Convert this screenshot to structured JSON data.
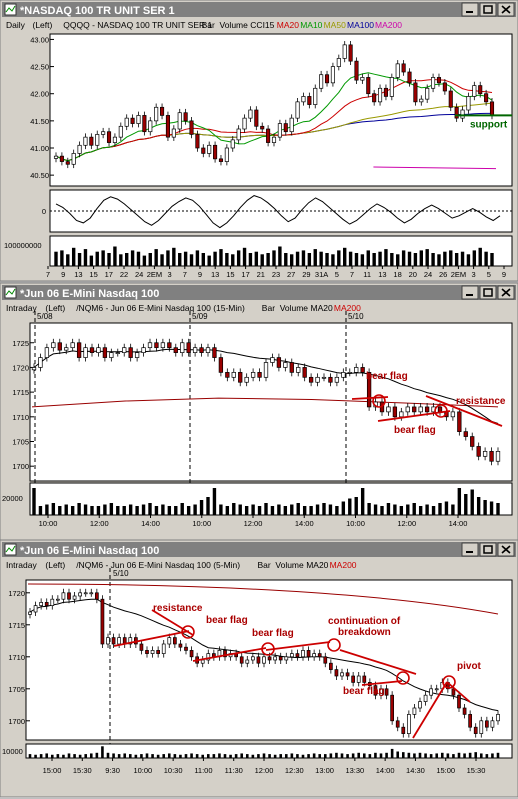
{
  "windows": [
    {
      "title": "*NASDAQ 100 TR UNIT SER 1",
      "info": {
        "interval": "Daily",
        "scale": "(Left)",
        "symbol": "QQQQ - NASDAQ 100 TR UNIT SER 1",
        "style": "Bar",
        "volume": "Volume",
        "indicator": "CCI15",
        "mas": [
          {
            "label": "MA20",
            "color": "#cc0000"
          },
          {
            "label": "MA10",
            "color": "#009900"
          },
          {
            "label": "MA50",
            "color": "#999900"
          },
          {
            "label": "MA100",
            "color": "#000099"
          },
          {
            "label": "MA200",
            "color": "#cc00aa"
          }
        ]
      }
    },
    {
      "title": "*Jun 06  E-Mini Nasdaq 100",
      "info": {
        "interval": "Intraday",
        "scale": "(Left)",
        "symbol": "/NQM6 - Jun 06  E-Mini Nasdaq 100 (15-Min)",
        "style": "Bar",
        "volume": "Volume",
        "mas": [
          {
            "label": "MA20",
            "color": "#000000"
          },
          {
            "label": "MA200",
            "color": "#cc0000"
          }
        ]
      }
    },
    {
      "title": "*Jun 06  E-Mini Nasdaq 100",
      "info": {
        "interval": "Intraday",
        "scale": "(Left)",
        "symbol": "/NQM6 - Jun 06  E-Mini Nasdaq 100 (5-Min)",
        "style": "Bar",
        "volume": "Volume",
        "mas": [
          {
            "label": "MA20",
            "color": "#000000"
          },
          {
            "label": "MA200",
            "color": "#cc0000"
          }
        ]
      }
    }
  ],
  "chart_data": [
    {
      "type": "candlestick",
      "ylim": [
        40.3,
        43.1
      ],
      "ytick_values": [
        40.5,
        41.0,
        41.5,
        42.0,
        42.5,
        43.0
      ],
      "ytick_labels": [
        "40.50",
        "41.00",
        "41.50",
        "42.00",
        "42.50",
        "43.00"
      ],
      "xtick_labels": [
        "7",
        "9",
        "13",
        "15",
        "17",
        "22",
        "24",
        "2EM",
        "3",
        "7",
        "9",
        "13",
        "15",
        "17",
        "21",
        "23",
        "27",
        "29",
        "31A",
        "5",
        "7",
        "11",
        "13",
        "18",
        "20",
        "24",
        "26",
        "2EM",
        "3",
        "5",
        "9"
      ],
      "close": [
        40.85,
        40.75,
        40.7,
        40.9,
        41.05,
        41.2,
        41.05,
        41.25,
        41.3,
        41.1,
        41.2,
        41.4,
        41.55,
        41.45,
        41.6,
        41.3,
        41.5,
        41.75,
        41.6,
        41.2,
        41.35,
        41.65,
        41.5,
        41.25,
        41.0,
        40.9,
        41.05,
        40.8,
        40.75,
        41.0,
        41.15,
        41.35,
        41.55,
        41.7,
        41.4,
        41.35,
        41.1,
        41.2,
        41.45,
        41.3,
        41.55,
        41.85,
        41.95,
        41.8,
        42.1,
        42.35,
        42.2,
        42.5,
        42.65,
        42.9,
        42.6,
        42.25,
        42.3,
        42.0,
        41.85,
        42.1,
        41.95,
        42.3,
        42.55,
        42.4,
        42.2,
        41.85,
        41.9,
        42.1,
        42.3,
        42.2,
        42.05,
        41.75,
        41.55,
        41.7,
        41.95,
        42.15,
        42.0,
        41.85,
        41.6
      ],
      "ma200_start": [
        0.7,
        41.2
      ],
      "ma200_end": [
        1.0,
        40.62
      ],
      "annotations": [
        {
          "text": "support",
          "color": "#006600",
          "y": 41.6
        }
      ],
      "cci": {
        "label": "0",
        "values": [
          60,
          30,
          -20,
          -80,
          -100,
          -60,
          20,
          90,
          120,
          100,
          60,
          10,
          -40,
          -90,
          -120,
          -80,
          -20,
          40,
          80,
          110,
          90,
          40,
          -30,
          -100,
          -140,
          -100,
          -40,
          30,
          90,
          130,
          110,
          70,
          20,
          -40,
          -90,
          -60,
          10,
          70,
          110,
          80,
          30,
          -20,
          -70,
          -110,
          -80,
          -30,
          20,
          60,
          30,
          -10,
          -60,
          -100,
          -70,
          -20,
          20,
          50,
          20,
          -20,
          -60,
          -40,
          -10,
          20,
          -10,
          -50,
          -80,
          -40
        ]
      },
      "volume": {
        "label": "100000000",
        "values": [
          0.55,
          0.6,
          0.45,
          0.7,
          0.5,
          0.65,
          0.4,
          0.55,
          0.6,
          0.5,
          0.75,
          0.45,
          0.5,
          0.6,
          0.55,
          0.4,
          0.5,
          0.65,
          0.45,
          0.6,
          0.7,
          0.5,
          0.55,
          0.45,
          0.6,
          0.5,
          0.4,
          0.55,
          0.65,
          0.5,
          0.45,
          0.6,
          0.7,
          0.5,
          0.55,
          0.45,
          0.5,
          0.6,
          0.75,
          0.5,
          0.45,
          0.55,
          0.6,
          0.5,
          0.65,
          0.55,
          0.5,
          0.45,
          0.6,
          0.7,
          0.55,
          0.5,
          0.45,
          0.6,
          0.5,
          0.55,
          0.65,
          0.5,
          0.45,
          0.6,
          0.55,
          0.5,
          0.6,
          0.65,
          0.5,
          0.45,
          0.55,
          0.6,
          0.5,
          0.55,
          0.45,
          0.6,
          0.7,
          0.55,
          0.5
        ]
      }
    },
    {
      "type": "candlestick",
      "ylim": [
        1697,
        1729
      ],
      "ytick_values": [
        1700,
        1705,
        1710,
        1715,
        1720,
        1725
      ],
      "ytick_labels": [
        "1700",
        "1705",
        "1710",
        "1715",
        "1720",
        "1725"
      ],
      "xtick_labels": [
        "10:00",
        "12:00",
        "14:00",
        "10:00",
        "12:00",
        "14:00",
        "10:00",
        "12:00",
        "14:00"
      ],
      "sessions": [
        "5/08",
        "5/09",
        "5/10"
      ],
      "close": [
        1720,
        1722,
        1724,
        1725,
        1723.5,
        1724,
        1725,
        1722,
        1724,
        1723,
        1724,
        1722,
        1723,
        1723,
        1724,
        1722,
        1723,
        1724,
        1725,
        1724,
        1725,
        1724,
        1723,
        1725,
        1723,
        1724,
        1723,
        1724,
        1722,
        1719,
        1718,
        1719,
        1717,
        1718,
        1719,
        1718,
        1721,
        1722,
        1720,
        1721,
        1719,
        1720,
        1718,
        1717,
        1718,
        1718,
        1717,
        1718,
        1719,
        1719,
        1720,
        1719,
        1712,
        1713,
        1711,
        1712,
        1710,
        1711,
        1712,
        1711,
        1712,
        1711,
        1712,
        1711,
        1710,
        1711,
        1707,
        1706,
        1704,
        1702,
        1703,
        1701,
        1703
      ],
      "ma200": [
        1712,
        1713.2,
        1713.8,
        1713.5,
        1712.8,
        1712
      ],
      "annotations": [
        {
          "text": "bear flag",
          "color": "#aa0000"
        },
        {
          "text": "bear flag",
          "color": "#aa0000"
        },
        {
          "text": "resistance",
          "color": "#aa0000"
        }
      ],
      "volume": {
        "label": "20000",
        "values": [
          0.9,
          0.3,
          0.35,
          0.4,
          0.3,
          0.35,
          0.3,
          0.4,
          0.35,
          0.3,
          0.3,
          0.35,
          0.4,
          0.3,
          0.3,
          0.35,
          0.3,
          0.35,
          0.4,
          0.3,
          0.35,
          0.3,
          0.3,
          0.4,
          0.3,
          0.35,
          0.5,
          0.6,
          0.9,
          0.35,
          0.3,
          0.4,
          0.35,
          0.3,
          0.35,
          0.3,
          0.4,
          0.3,
          0.35,
          0.3,
          0.35,
          0.4,
          0.3,
          0.3,
          0.35,
          0.4,
          0.35,
          0.3,
          0.45,
          0.55,
          0.6,
          0.9,
          0.4,
          0.35,
          0.3,
          0.4,
          0.35,
          0.3,
          0.35,
          0.4,
          0.3,
          0.35,
          0.3,
          0.4,
          0.45,
          0.35,
          0.9,
          0.7,
          0.85,
          0.6,
          0.5,
          0.45,
          0.4
        ]
      }
    },
    {
      "type": "candlestick",
      "ylim": [
        1697,
        1722
      ],
      "ytick_values": [
        1700,
        1705,
        1710,
        1715,
        1720
      ],
      "ytick_labels": [
        "1700",
        "1705",
        "1710",
        "1715",
        "1720"
      ],
      "xtick_labels": [
        "15:00",
        "15:30",
        "9:30",
        "10:00",
        "10:30",
        "11:00",
        "11:30",
        "12:00",
        "12:30",
        "13:00",
        "13:30",
        "14:00",
        "14:30",
        "15:00",
        "15:30"
      ],
      "session": "5/10",
      "close": [
        1717,
        1718,
        1718.5,
        1718,
        1719,
        1719,
        1720,
        1719,
        1719.5,
        1720,
        1720,
        1720,
        1719,
        1712,
        1713,
        1712,
        1713,
        1712,
        1713,
        1712,
        1711,
        1710.5,
        1711,
        1710.5,
        1712,
        1713,
        1712,
        1711.5,
        1711,
        1710,
        1709,
        1709.5,
        1710.5,
        1710,
        1711,
        1710,
        1710.5,
        1710,
        1709,
        1709.5,
        1710,
        1709,
        1710,
        1709.5,
        1710,
        1709.5,
        1710,
        1710.5,
        1710,
        1711,
        1710,
        1710.5,
        1710,
        1709,
        1708,
        1707,
        1707.5,
        1707,
        1706,
        1707,
        1706,
        1705.5,
        1704,
        1705,
        1704,
        1700,
        1699,
        1698,
        1701,
        1702,
        1703,
        1704,
        1705,
        1705,
        1706,
        1705,
        1704,
        1702,
        1701,
        1699,
        1698,
        1700,
        1699,
        1700,
        1701
      ],
      "annotations": [
        {
          "text": "resistance",
          "color": "#aa0000"
        },
        {
          "text": "bear flag",
          "color": "#aa0000"
        },
        {
          "text": "bear flag",
          "color": "#aa0000"
        },
        {
          "text": "continuation of",
          "color": "#aa0000"
        },
        {
          "text": "breakdown",
          "color": "#aa0000"
        },
        {
          "text": "bear flag",
          "color": "#aa0000"
        },
        {
          "text": "pivot",
          "color": "#aa0000"
        }
      ],
      "volume": {
        "label": "10000",
        "values": [
          0.3,
          0.25,
          0.3,
          0.35,
          0.25,
          0.3,
          0.25,
          0.35,
          0.3,
          0.25,
          0.3,
          0.35,
          0.4,
          0.9,
          0.4,
          0.35,
          0.3,
          0.35,
          0.3,
          0.25,
          0.3,
          0.35,
          0.3,
          0.25,
          0.3,
          0.35,
          0.3,
          0.25,
          0.3,
          0.35,
          0.3,
          0.25,
          0.3,
          0.3,
          0.35,
          0.3,
          0.25,
          0.3,
          0.35,
          0.3,
          0.25,
          0.3,
          0.35,
          0.3,
          0.25,
          0.3,
          0.3,
          0.35,
          0.3,
          0.25,
          0.3,
          0.35,
          0.3,
          0.3,
          0.35,
          0.4,
          0.35,
          0.3,
          0.35,
          0.4,
          0.35,
          0.3,
          0.4,
          0.35,
          0.4,
          0.7,
          0.5,
          0.45,
          0.4,
          0.35,
          0.4,
          0.35,
          0.3,
          0.35,
          0.4,
          0.35,
          0.3,
          0.4,
          0.35,
          0.4,
          0.45,
          0.35,
          0.3,
          0.35,
          0.4
        ]
      }
    }
  ]
}
